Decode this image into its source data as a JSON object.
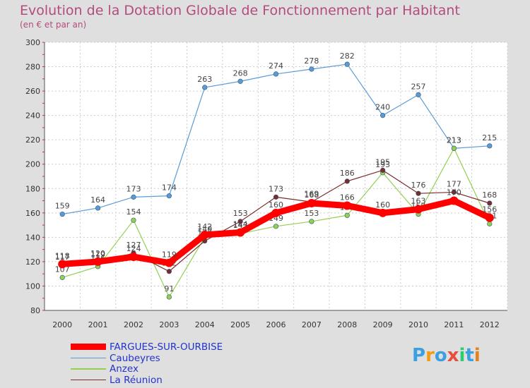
{
  "chart_data": {
    "type": "line",
    "title": "Evolution de la Dotation Globale de Fonctionnement par Habitant",
    "subtitle": "(en € et par an)",
    "x": [
      "2000",
      "2001",
      "2002",
      "2003",
      "2004",
      "2005",
      "2006",
      "2007",
      "2008",
      "2009",
      "2010",
      "2011",
      "2012"
    ],
    "ylim": [
      80,
      300
    ],
    "yticks": [
      80,
      100,
      120,
      140,
      160,
      180,
      200,
      220,
      240,
      260,
      280,
      300
    ],
    "grid": true,
    "series": [
      {
        "name": "Caubeyres",
        "color": "#5b9bd5",
        "values": [
          159,
          164,
          173,
          174,
          263,
          268,
          274,
          278,
          282,
          240,
          257,
          213,
          215
        ]
      },
      {
        "name": "Anzex",
        "color": "#92d050",
        "values": [
          107,
          116,
          154,
          91,
          140,
          143,
          149,
          153,
          158,
          193,
          159,
          213,
          151
        ]
      },
      {
        "name": "La Réunion",
        "color": "#7b2c2c",
        "values": [
          117,
          119,
          127,
          112,
          137,
          153,
          173,
          169,
          186,
          195,
          176,
          177,
          168
        ]
      },
      {
        "name": "FARGUES-SUR-OURBISE",
        "color": "#ff0000",
        "values": [
          118,
          120,
          124,
          119,
          142,
          144,
          160,
          168,
          166,
          160,
          163,
          170,
          156
        ]
      }
    ]
  },
  "legend": [
    "FARGUES-SUR-OURBISE",
    "Caubeyres",
    "Anzex",
    "La Réunion"
  ],
  "logo": {
    "letters": [
      "P",
      "r",
      "o",
      "x",
      "i",
      "t",
      "i"
    ],
    "colors": [
      "#3aa0e0",
      "#f39c12",
      "#3aa0e0",
      "#e74c3c",
      "#2ecc71",
      "#3aa0e0",
      "#e67e22"
    ]
  }
}
